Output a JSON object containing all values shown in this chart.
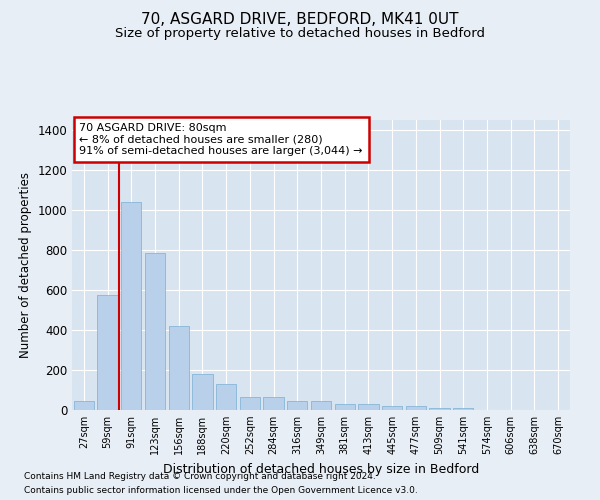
{
  "title": "70, ASGARD DRIVE, BEDFORD, MK41 0UT",
  "subtitle": "Size of property relative to detached houses in Bedford",
  "xlabel": "Distribution of detached houses by size in Bedford",
  "ylabel": "Number of detached properties",
  "footer_line1": "Contains HM Land Registry data © Crown copyright and database right 2024.",
  "footer_line2": "Contains public sector information licensed under the Open Government Licence v3.0.",
  "annotation_title": "70 ASGARD DRIVE: 80sqm",
  "annotation_line1": "← 8% of detached houses are smaller (280)",
  "annotation_line2": "91% of semi-detached houses are larger (3,044) →",
  "bar_labels": [
    "27sqm",
    "59sqm",
    "91sqm",
    "123sqm",
    "156sqm",
    "188sqm",
    "220sqm",
    "252sqm",
    "284sqm",
    "316sqm",
    "349sqm",
    "381sqm",
    "413sqm",
    "445sqm",
    "477sqm",
    "509sqm",
    "541sqm",
    "574sqm",
    "606sqm",
    "638sqm",
    "670sqm"
  ],
  "bar_values": [
    45,
    575,
    1040,
    785,
    420,
    178,
    128,
    63,
    63,
    43,
    43,
    28,
    28,
    20,
    20,
    12,
    12,
    0,
    0,
    0,
    0
  ],
  "bar_color": "#b8d0ea",
  "bar_edgecolor": "#7aafd4",
  "red_line_x": 1.5,
  "ylim": [
    0,
    1450
  ],
  "yticks": [
    0,
    200,
    400,
    600,
    800,
    1000,
    1200,
    1400
  ],
  "bg_color": "#e8eef5",
  "plot_bg_color": "#d8e4f0",
  "grid_color": "#ffffff",
  "annotation_box_color": "#ffffff",
  "annotation_border_color": "#cc0000",
  "red_line_color": "#cc0000",
  "title_fontsize": 11,
  "subtitle_fontsize": 9.5,
  "ylabel_fontsize": 8.5,
  "xlabel_fontsize": 9
}
